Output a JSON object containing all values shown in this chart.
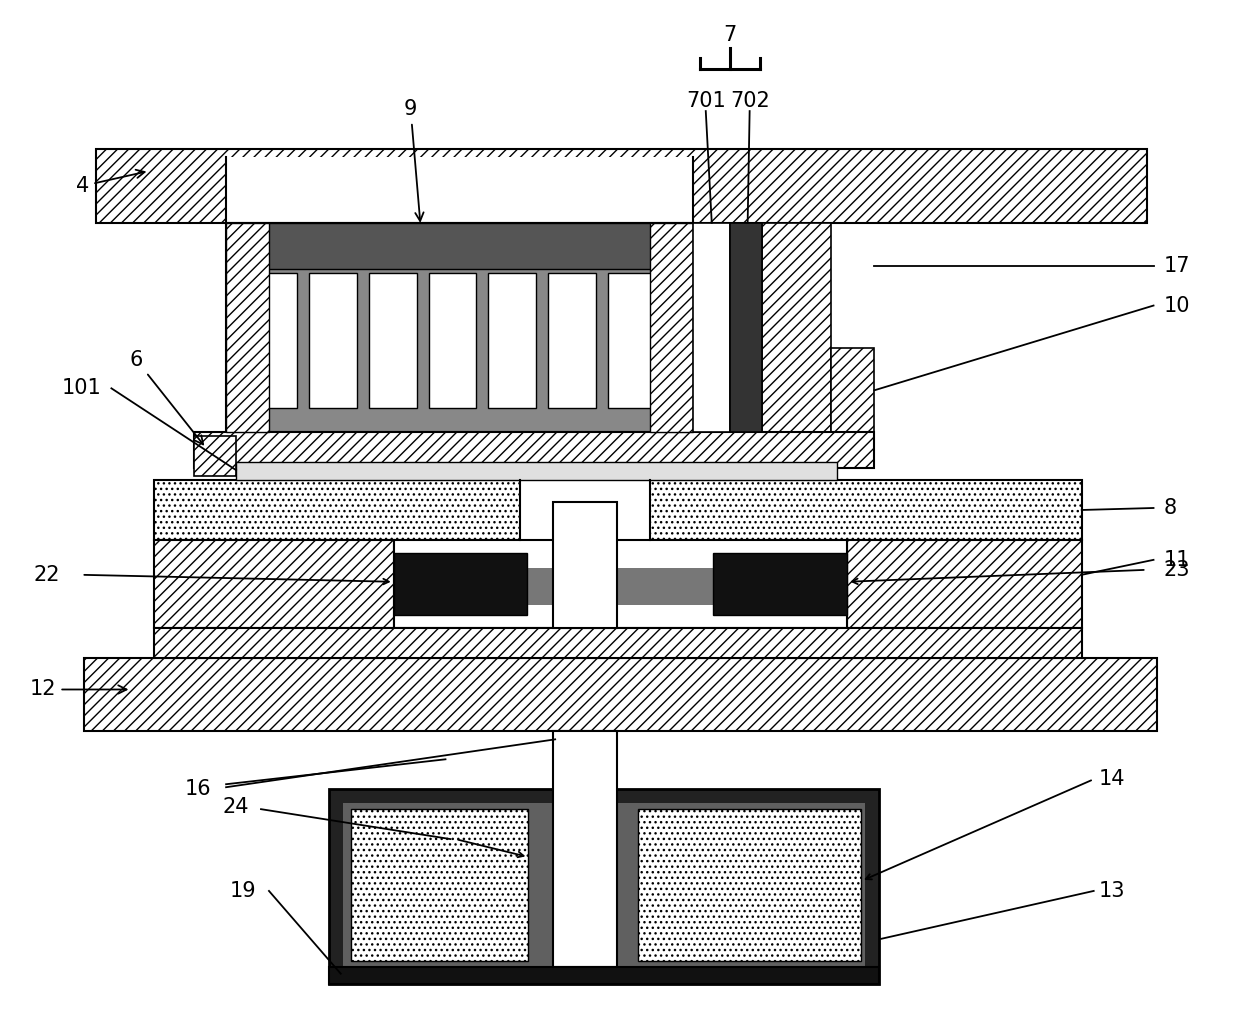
{
  "fig_width": 12.4,
  "fig_height": 10.09,
  "dpi": 100,
  "bg_color": "#ffffff"
}
